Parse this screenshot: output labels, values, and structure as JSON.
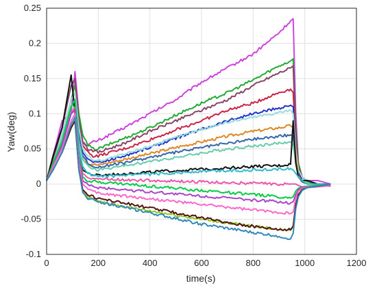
{
  "chart_data": {
    "type": "line",
    "title": "",
    "xlabel": "time(s)",
    "ylabel": "Yaw(deg)",
    "xlim": [
      0,
      1200
    ],
    "ylim": [
      -0.1,
      0.25
    ],
    "x_ticks": [
      "0",
      "200",
      "400",
      "600",
      "800",
      "1000",
      "1200"
    ],
    "y_ticks": [
      "-0.1",
      "-0.05",
      "0",
      "0.05",
      "0.1",
      "0.15",
      "0.2",
      "0.25"
    ],
    "grid": true,
    "legend": "none",
    "x": [
      0,
      25,
      60,
      95,
      110,
      125,
      140,
      160,
      180,
      200,
      300,
      400,
      500,
      600,
      700,
      800,
      900,
      945,
      955,
      965,
      975,
      990,
      1010,
      1050,
      1100
    ],
    "series": [
      {
        "color": "#cc44dd",
        "values": [
          0.005,
          0.04,
          0.09,
          0.1,
          0.16,
          0.1,
          0.06,
          0.055,
          0.06,
          0.062,
          0.08,
          0.1,
          0.12,
          0.145,
          0.165,
          0.185,
          0.215,
          0.232,
          0.235,
          0.1,
          0.03,
          0.01,
          0.005,
          0.005,
          0.0
        ]
      },
      {
        "color": "#22aa33",
        "values": [
          0.005,
          0.03,
          0.07,
          0.12,
          0.14,
          0.1,
          0.07,
          0.055,
          0.05,
          0.05,
          0.065,
          0.08,
          0.098,
          0.115,
          0.13,
          0.148,
          0.168,
          0.175,
          0.178,
          0.08,
          0.03,
          0.01,
          0.003,
          0.0,
          0.0
        ]
      },
      {
        "color": "#884466",
        "values": [
          0.005,
          0.035,
          0.08,
          0.14,
          0.15,
          0.09,
          0.06,
          0.05,
          0.048,
          0.045,
          0.058,
          0.075,
          0.09,
          0.105,
          0.12,
          0.14,
          0.158,
          0.165,
          0.168,
          0.07,
          0.025,
          0.01,
          0.005,
          0.0,
          0.0
        ]
      },
      {
        "color": "#cc2244",
        "values": [
          0.005,
          0.03,
          0.07,
          0.12,
          0.13,
          0.08,
          0.055,
          0.045,
          0.04,
          0.04,
          0.05,
          0.063,
          0.077,
          0.09,
          0.105,
          0.115,
          0.13,
          0.135,
          0.13,
          0.06,
          0.02,
          0.005,
          0.0,
          0.0,
          0.0
        ]
      },
      {
        "color": "#2233cc",
        "values": [
          0.005,
          0.03,
          0.065,
          0.11,
          0.12,
          0.07,
          0.045,
          0.035,
          0.032,
          0.03,
          0.04,
          0.052,
          0.065,
          0.078,
          0.09,
          0.1,
          0.108,
          0.112,
          0.11,
          0.05,
          0.015,
          0.005,
          0.0,
          0.0,
          -0.003
        ]
      },
      {
        "color": "#99dddd",
        "values": [
          0.005,
          0.03,
          0.07,
          0.12,
          0.13,
          0.08,
          0.05,
          0.04,
          0.035,
          0.033,
          0.042,
          0.054,
          0.066,
          0.078,
          0.088,
          0.095,
          0.102,
          0.105,
          0.1,
          0.05,
          0.02,
          0.01,
          0.005,
          0.0,
          0.0
        ]
      },
      {
        "color": "#dd8822",
        "values": [
          0.005,
          0.025,
          0.06,
          0.1,
          0.11,
          0.06,
          0.04,
          0.03,
          0.028,
          0.027,
          0.035,
          0.043,
          0.052,
          0.06,
          0.068,
          0.075,
          0.08,
          0.083,
          0.08,
          0.04,
          0.012,
          0.004,
          0.0,
          0.0,
          0.0
        ]
      },
      {
        "color": "#3366aa",
        "values": [
          0.005,
          0.025,
          0.06,
          0.11,
          0.12,
          0.065,
          0.04,
          0.03,
          0.025,
          0.024,
          0.03,
          0.038,
          0.045,
          0.052,
          0.058,
          0.064,
          0.068,
          0.07,
          0.068,
          0.03,
          0.01,
          0.003,
          0.0,
          0.0,
          0.0
        ]
      },
      {
        "color": "#66ccaa",
        "values": [
          0.005,
          0.03,
          0.065,
          0.11,
          0.115,
          0.06,
          0.035,
          0.025,
          0.022,
          0.02,
          0.026,
          0.032,
          0.038,
          0.044,
          0.05,
          0.054,
          0.058,
          0.06,
          0.055,
          0.03,
          0.01,
          0.005,
          0.0,
          0.0,
          0.0
        ]
      },
      {
        "color": "#111111",
        "values": [
          0.005,
          0.04,
          0.08,
          0.155,
          0.1,
          0.04,
          0.02,
          0.015,
          0.013,
          0.012,
          0.015,
          0.017,
          0.019,
          0.021,
          0.023,
          0.025,
          0.026,
          0.028,
          0.09,
          0.03,
          0.01,
          0.005,
          0.005,
          0.0,
          0.0
        ]
      },
      {
        "color": "#33bbcc",
        "values": [
          0.005,
          0.03,
          0.06,
          0.11,
          0.12,
          0.05,
          0.025,
          0.015,
          0.012,
          0.01,
          0.012,
          0.014,
          0.016,
          0.018,
          0.019,
          0.02,
          0.021,
          0.022,
          0.02,
          0.015,
          0.01,
          0.005,
          0.0,
          0.0,
          0.0
        ]
      },
      {
        "color": "#ee55aa",
        "values": [
          0.005,
          0.025,
          0.055,
          0.1,
          0.11,
          0.04,
          0.015,
          0.01,
          0.008,
          0.007,
          0.006,
          0.005,
          0.004,
          0.003,
          0.002,
          0.001,
          0.0,
          0.0,
          0.0,
          0.0,
          -0.002,
          -0.004,
          -0.005,
          -0.004,
          -0.002
        ]
      },
      {
        "color": "#00cc44",
        "values": [
          0.005,
          0.03,
          0.06,
          0.11,
          0.12,
          0.04,
          0.01,
          0.005,
          0.004,
          0.003,
          0.0,
          -0.003,
          -0.006,
          -0.009,
          -0.012,
          -0.015,
          -0.018,
          -0.02,
          -0.018,
          -0.01,
          -0.006,
          -0.004,
          -0.003,
          -0.002,
          0.0
        ]
      },
      {
        "color": "#aa44cc",
        "values": [
          0.005,
          0.025,
          0.055,
          0.1,
          0.105,
          0.035,
          0.005,
          -0.002,
          -0.004,
          -0.005,
          -0.008,
          -0.011,
          -0.014,
          -0.017,
          -0.02,
          -0.023,
          -0.025,
          -0.027,
          -0.025,
          -0.015,
          -0.008,
          -0.005,
          -0.004,
          -0.003,
          0.0
        ]
      },
      {
        "color": "#ff66cc",
        "values": [
          0.005,
          0.025,
          0.05,
          0.09,
          0.1,
          0.03,
          0.0,
          -0.008,
          -0.011,
          -0.013,
          -0.017,
          -0.021,
          -0.025,
          -0.029,
          -0.033,
          -0.037,
          -0.04,
          -0.042,
          -0.04,
          -0.02,
          -0.01,
          -0.006,
          -0.004,
          -0.003,
          0.0
        ]
      },
      {
        "color": "#88cc22",
        "values": [
          0.005,
          0.02,
          0.045,
          0.08,
          0.09,
          0.02,
          -0.01,
          -0.02,
          -0.022,
          -0.025,
          -0.032,
          -0.038,
          -0.044,
          -0.05,
          -0.055,
          -0.06,
          -0.064,
          -0.066,
          -0.06,
          -0.03,
          -0.015,
          -0.008,
          -0.005,
          -0.003,
          0.0
        ]
      },
      {
        "color": "#551111",
        "values": [
          0.005,
          0.02,
          0.045,
          0.08,
          0.09,
          0.02,
          -0.008,
          -0.015,
          -0.018,
          -0.02,
          -0.027,
          -0.034,
          -0.041,
          -0.048,
          -0.055,
          -0.06,
          -0.064,
          -0.065,
          -0.06,
          -0.03,
          -0.015,
          -0.008,
          -0.005,
          -0.003,
          0.0
        ]
      },
      {
        "color": "#3388bb",
        "values": [
          0.005,
          0.02,
          0.045,
          0.085,
          0.095,
          0.02,
          -0.012,
          -0.02,
          -0.023,
          -0.025,
          -0.033,
          -0.041,
          -0.049,
          -0.057,
          -0.063,
          -0.069,
          -0.074,
          -0.078,
          -0.07,
          -0.035,
          -0.018,
          -0.009,
          -0.005,
          -0.003,
          0.0
        ]
      }
    ]
  }
}
